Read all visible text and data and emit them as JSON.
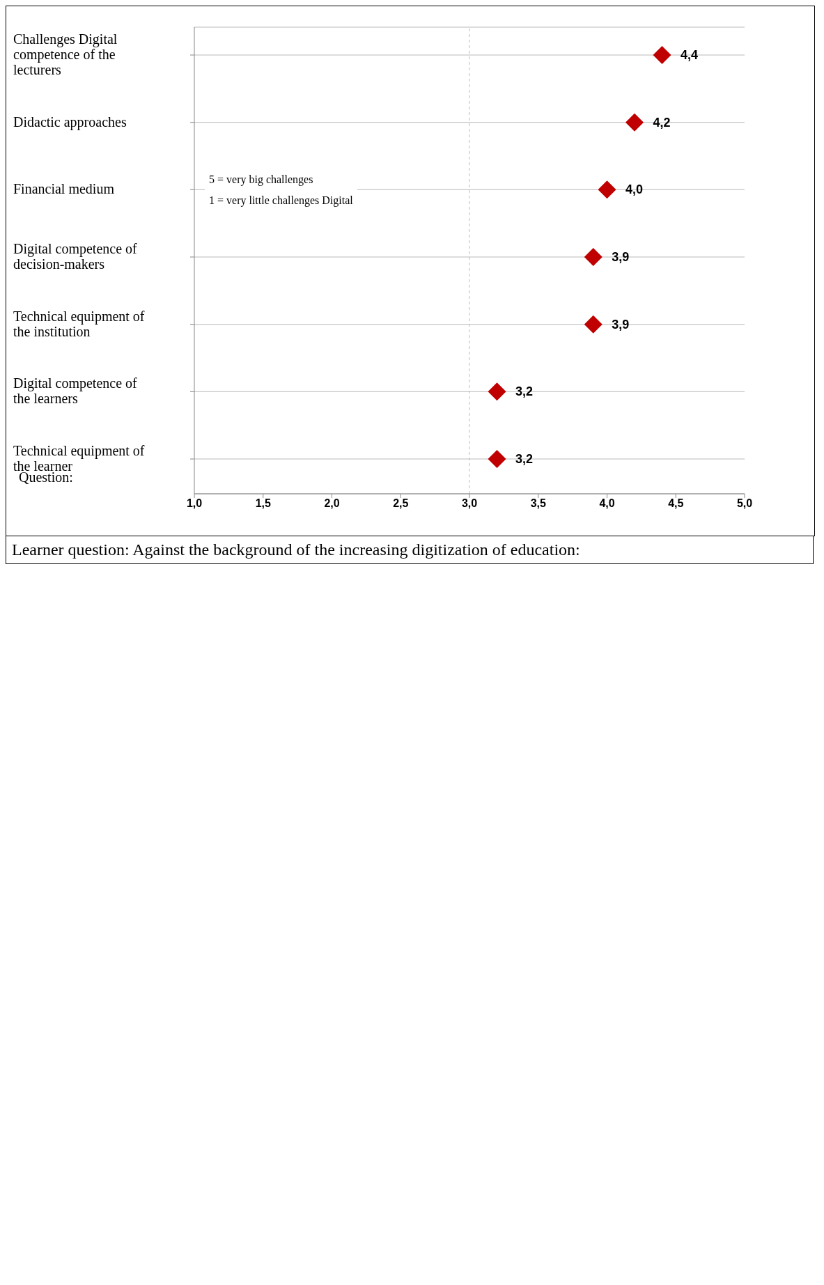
{
  "chart_data": {
    "type": "scatter",
    "orientation": "horizontal",
    "categories": [
      "Challenges Digital competence of the lecturers",
      "Didactic approaches",
      "Financial medium",
      "Digital competence of decision-makers",
      "Technical equipment of the institution",
      "Digital competence of the learners",
      "Technical equipment of the learner"
    ],
    "series": [
      {
        "color": "#c00000",
        "values": [
          4.4,
          4.2,
          4.0,
          3.9,
          3.9,
          3.2,
          3.2
        ],
        "value_labels": [
          "4,4",
          "4,2",
          "4,0",
          "3,9",
          "3,9",
          "3,2",
          "3,2"
        ]
      }
    ],
    "xlim": [
      1,
      5
    ],
    "xticks": [
      {
        "value": 1,
        "label": "1,0"
      },
      {
        "value": 1.5,
        "label": "1,5"
      },
      {
        "value": 2,
        "label": "2,0"
      },
      {
        "value": 2.5,
        "label": "2,5"
      },
      {
        "value": 3,
        "label": "3,0"
      },
      {
        "value": 3.5,
        "label": "3,5"
      },
      {
        "value": 4,
        "label": "4,0"
      },
      {
        "value": 4.5,
        "label": "4,5"
      },
      {
        "value": 5,
        "label": "5,0"
      }
    ],
    "grid": "y",
    "marker": "diamond",
    "ref_lines": [
      {
        "axis": "x",
        "value": 3,
        "color": "#bbbbbb",
        "line_style": "dashed"
      }
    ],
    "annotations": [
      "5 = very big challenges",
      "1 = very little challenges Digital",
      "Question:",
      "Learner question: Against the background of the increasing digitization of education:"
    ]
  }
}
